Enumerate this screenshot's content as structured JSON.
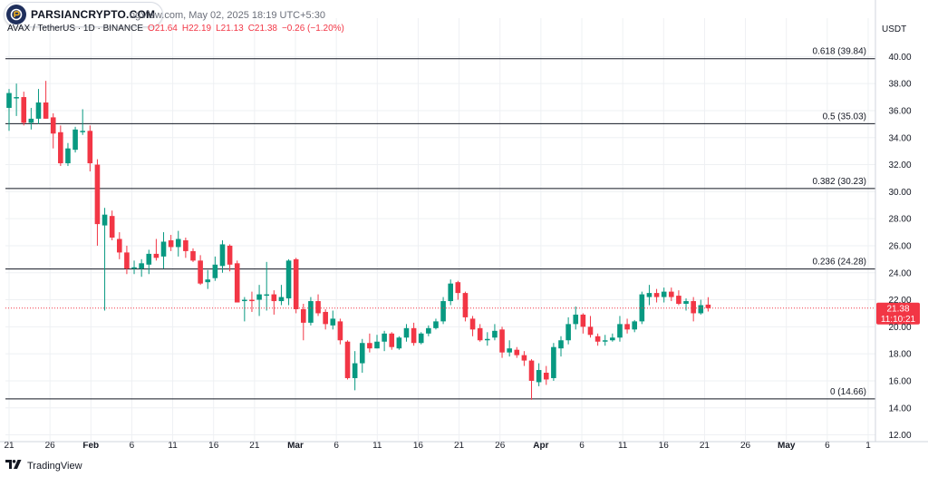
{
  "header": {
    "watermark_text": "PARSIANCRYPTO.COM",
    "published_line": "ngView.com, May 02, 2025 18:19 UTC+5:30",
    "symbol": "AVAX / TetherUS · 1D · BINANCE",
    "o": "O21.64",
    "h": "H22.19",
    "l": "L21.13",
    "c": "C21.38",
    "change": "−0.26 (−1.20%)"
  },
  "currency_label": "USDT",
  "footer": {
    "brand": "TradingView"
  },
  "price_label": {
    "value": "21.38",
    "countdown": "11:10:21"
  },
  "colors": {
    "up": "#089981",
    "down": "#f23645",
    "grid": "#eef0f3",
    "fib": "#131722",
    "price_line": "#f23645"
  },
  "chart_data": {
    "type": "candlestick",
    "title": "AVAX / TetherUS · 1D · BINANCE",
    "y_axis": {
      "ticks": [
        12,
        14,
        16,
        18,
        20,
        22,
        24,
        26,
        28,
        30,
        32,
        34,
        36,
        38,
        40
      ],
      "ylim": [
        11.5,
        41.5
      ],
      "position": "right"
    },
    "x_axis": {
      "tick_labels": [
        "21",
        "26",
        "Feb",
        "6",
        "11",
        "16",
        "21",
        "Mar",
        "6",
        "11",
        "16",
        "21",
        "26",
        "Apr",
        "6",
        "11",
        "16",
        "21",
        "26",
        "May",
        "6",
        "1"
      ]
    },
    "fib_levels": [
      {
        "label": "0.618 (39.84)",
        "value": 39.84
      },
      {
        "label": "0.5 (35.03)",
        "value": 35.03
      },
      {
        "label": "0.382 (30.23)",
        "value": 30.23
      },
      {
        "label": "0.236 (24.28)",
        "value": 24.28
      },
      {
        "label": "0 (14.66)",
        "value": 14.66
      }
    ],
    "current_price": 21.38,
    "candles": [
      {
        "o": 36.2,
        "h": 37.6,
        "l": 34.5,
        "c": 37.3
      },
      {
        "o": 36.9,
        "h": 38.0,
        "l": 35.6,
        "c": 37.0
      },
      {
        "o": 37.0,
        "h": 37.4,
        "l": 34.9,
        "c": 35.1
      },
      {
        "o": 35.1,
        "h": 36.2,
        "l": 34.6,
        "c": 35.4
      },
      {
        "o": 35.4,
        "h": 37.6,
        "l": 35.0,
        "c": 36.6
      },
      {
        "o": 36.6,
        "h": 38.2,
        "l": 35.4,
        "c": 35.4
      },
      {
        "o": 35.5,
        "h": 35.8,
        "l": 33.2,
        "c": 34.3
      },
      {
        "o": 34.4,
        "h": 34.9,
        "l": 31.9,
        "c": 32.1
      },
      {
        "o": 32.1,
        "h": 33.6,
        "l": 31.9,
        "c": 33.2
      },
      {
        "o": 33.1,
        "h": 34.8,
        "l": 32.9,
        "c": 34.6
      },
      {
        "o": 34.4,
        "h": 36.1,
        "l": 34.2,
        "c": 34.5
      },
      {
        "o": 34.5,
        "h": 34.9,
        "l": 31.5,
        "c": 32.1
      },
      {
        "o": 32.0,
        "h": 32.4,
        "l": 26.0,
        "c": 27.6
      },
      {
        "o": 27.5,
        "h": 28.8,
        "l": 21.2,
        "c": 28.3
      },
      {
        "o": 28.2,
        "h": 28.6,
        "l": 26.4,
        "c": 26.6
      },
      {
        "o": 26.5,
        "h": 27.0,
        "l": 25.0,
        "c": 25.5
      },
      {
        "o": 25.5,
        "h": 26.0,
        "l": 23.9,
        "c": 24.3
      },
      {
        "o": 24.3,
        "h": 24.9,
        "l": 23.9,
        "c": 24.4
      },
      {
        "o": 24.3,
        "h": 25.0,
        "l": 23.7,
        "c": 24.7
      },
      {
        "o": 24.6,
        "h": 25.7,
        "l": 23.9,
        "c": 25.4
      },
      {
        "o": 25.4,
        "h": 26.5,
        "l": 24.9,
        "c": 25.1
      },
      {
        "o": 25.2,
        "h": 27.0,
        "l": 24.3,
        "c": 26.3
      },
      {
        "o": 26.4,
        "h": 26.8,
        "l": 25.6,
        "c": 25.9
      },
      {
        "o": 25.9,
        "h": 27.1,
        "l": 25.2,
        "c": 26.5
      },
      {
        "o": 26.4,
        "h": 26.6,
        "l": 25.1,
        "c": 25.6
      },
      {
        "o": 25.6,
        "h": 25.8,
        "l": 24.8,
        "c": 24.9
      },
      {
        "o": 24.9,
        "h": 25.3,
        "l": 23.1,
        "c": 23.2
      },
      {
        "o": 23.3,
        "h": 24.2,
        "l": 22.8,
        "c": 23.5
      },
      {
        "o": 23.6,
        "h": 25.2,
        "l": 23.4,
        "c": 24.6
      },
      {
        "o": 24.5,
        "h": 26.4,
        "l": 24.0,
        "c": 26.1
      },
      {
        "o": 26.0,
        "h": 26.1,
        "l": 24.1,
        "c": 24.6
      },
      {
        "o": 24.7,
        "h": 24.9,
        "l": 21.8,
        "c": 21.8
      },
      {
        "o": 21.9,
        "h": 22.2,
        "l": 20.4,
        "c": 22.0
      },
      {
        "o": 22.0,
        "h": 22.6,
        "l": 21.1,
        "c": 21.9
      },
      {
        "o": 22.0,
        "h": 23.1,
        "l": 20.8,
        "c": 22.4
      },
      {
        "o": 22.3,
        "h": 24.8,
        "l": 21.2,
        "c": 22.4
      },
      {
        "o": 22.4,
        "h": 22.7,
        "l": 20.9,
        "c": 21.9
      },
      {
        "o": 21.9,
        "h": 23.1,
        "l": 21.6,
        "c": 22.2
      },
      {
        "o": 22.1,
        "h": 25.0,
        "l": 21.6,
        "c": 24.9
      },
      {
        "o": 25.0,
        "h": 25.1,
        "l": 21.0,
        "c": 21.3
      },
      {
        "o": 21.3,
        "h": 21.7,
        "l": 19.0,
        "c": 20.3
      },
      {
        "o": 20.3,
        "h": 22.2,
        "l": 20.1,
        "c": 21.9
      },
      {
        "o": 21.9,
        "h": 22.4,
        "l": 20.8,
        "c": 21.0
      },
      {
        "o": 21.1,
        "h": 21.3,
        "l": 19.8,
        "c": 20.2
      },
      {
        "o": 20.1,
        "h": 21.2,
        "l": 19.8,
        "c": 20.6
      },
      {
        "o": 20.4,
        "h": 20.6,
        "l": 18.7,
        "c": 19.0
      },
      {
        "o": 18.9,
        "h": 19.0,
        "l": 16.1,
        "c": 16.2
      },
      {
        "o": 16.2,
        "h": 18.2,
        "l": 15.3,
        "c": 17.3
      },
      {
        "o": 17.3,
        "h": 19.1,
        "l": 16.6,
        "c": 18.8
      },
      {
        "o": 18.8,
        "h": 19.5,
        "l": 18.1,
        "c": 18.4
      },
      {
        "o": 18.4,
        "h": 19.4,
        "l": 18.4,
        "c": 18.9
      },
      {
        "o": 18.9,
        "h": 19.7,
        "l": 18.2,
        "c": 19.5
      },
      {
        "o": 19.5,
        "h": 19.6,
        "l": 18.3,
        "c": 18.5
      },
      {
        "o": 18.4,
        "h": 19.3,
        "l": 18.3,
        "c": 19.2
      },
      {
        "o": 19.2,
        "h": 20.2,
        "l": 18.9,
        "c": 19.9
      },
      {
        "o": 19.9,
        "h": 20.3,
        "l": 18.6,
        "c": 18.8
      },
      {
        "o": 18.8,
        "h": 19.6,
        "l": 18.7,
        "c": 19.5
      },
      {
        "o": 19.5,
        "h": 20.1,
        "l": 19.3,
        "c": 19.9
      },
      {
        "o": 19.9,
        "h": 20.6,
        "l": 19.8,
        "c": 20.4
      },
      {
        "o": 20.4,
        "h": 22.2,
        "l": 20.2,
        "c": 21.9
      },
      {
        "o": 21.9,
        "h": 23.5,
        "l": 21.6,
        "c": 23.2
      },
      {
        "o": 23.3,
        "h": 23.4,
        "l": 22.0,
        "c": 22.5
      },
      {
        "o": 22.5,
        "h": 22.6,
        "l": 20.4,
        "c": 20.7
      },
      {
        "o": 20.6,
        "h": 20.8,
        "l": 19.3,
        "c": 19.8
      },
      {
        "o": 19.9,
        "h": 20.2,
        "l": 18.9,
        "c": 19.0
      },
      {
        "o": 19.0,
        "h": 19.6,
        "l": 18.6,
        "c": 19.1
      },
      {
        "o": 19.2,
        "h": 20.2,
        "l": 19.0,
        "c": 19.7
      },
      {
        "o": 19.8,
        "h": 20.0,
        "l": 17.7,
        "c": 18.1
      },
      {
        "o": 18.1,
        "h": 19.0,
        "l": 17.8,
        "c": 18.4
      },
      {
        "o": 18.3,
        "h": 18.5,
        "l": 17.7,
        "c": 17.9
      },
      {
        "o": 17.9,
        "h": 18.2,
        "l": 17.1,
        "c": 17.5
      },
      {
        "o": 17.5,
        "h": 17.6,
        "l": 14.6,
        "c": 16.0
      },
      {
        "o": 15.9,
        "h": 17.3,
        "l": 15.6,
        "c": 16.8
      },
      {
        "o": 16.6,
        "h": 17.1,
        "l": 15.7,
        "c": 16.1
      },
      {
        "o": 16.2,
        "h": 18.8,
        "l": 16.0,
        "c": 18.5
      },
      {
        "o": 18.4,
        "h": 19.3,
        "l": 17.8,
        "c": 19.0
      },
      {
        "o": 19.0,
        "h": 20.7,
        "l": 18.7,
        "c": 20.2
      },
      {
        "o": 20.2,
        "h": 21.5,
        "l": 19.8,
        "c": 20.9
      },
      {
        "o": 20.9,
        "h": 21.0,
        "l": 19.5,
        "c": 20.0
      },
      {
        "o": 20.0,
        "h": 20.8,
        "l": 19.2,
        "c": 19.4
      },
      {
        "o": 19.3,
        "h": 19.5,
        "l": 18.6,
        "c": 18.9
      },
      {
        "o": 18.9,
        "h": 19.4,
        "l": 18.6,
        "c": 19.0
      },
      {
        "o": 19.0,
        "h": 19.5,
        "l": 18.9,
        "c": 19.2
      },
      {
        "o": 19.2,
        "h": 20.8,
        "l": 18.9,
        "c": 20.2
      },
      {
        "o": 20.2,
        "h": 20.6,
        "l": 19.5,
        "c": 19.8
      },
      {
        "o": 19.8,
        "h": 20.5,
        "l": 19.6,
        "c": 20.4
      },
      {
        "o": 20.4,
        "h": 22.6,
        "l": 20.2,
        "c": 22.4
      },
      {
        "o": 22.2,
        "h": 23.1,
        "l": 21.6,
        "c": 22.5
      },
      {
        "o": 22.5,
        "h": 22.8,
        "l": 21.8,
        "c": 22.2
      },
      {
        "o": 22.2,
        "h": 22.9,
        "l": 21.8,
        "c": 22.6
      },
      {
        "o": 22.6,
        "h": 22.9,
        "l": 21.9,
        "c": 22.2
      },
      {
        "o": 22.3,
        "h": 22.7,
        "l": 21.6,
        "c": 21.7
      },
      {
        "o": 21.7,
        "h": 22.1,
        "l": 21.2,
        "c": 21.9
      },
      {
        "o": 21.9,
        "h": 22.2,
        "l": 20.4,
        "c": 21.0
      },
      {
        "o": 21.0,
        "h": 22.0,
        "l": 20.9,
        "c": 21.6
      },
      {
        "o": 21.64,
        "h": 22.19,
        "l": 21.13,
        "c": 21.38
      }
    ]
  }
}
